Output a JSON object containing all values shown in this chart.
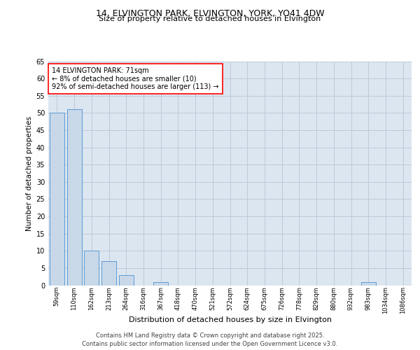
{
  "title": "14, ELVINGTON PARK, ELVINGTON, YORK, YO41 4DW",
  "subtitle": "Size of property relative to detached houses in Elvington",
  "xlabel": "Distribution of detached houses by size in Elvington",
  "ylabel": "Number of detached properties",
  "categories": [
    "59sqm",
    "110sqm",
    "162sqm",
    "213sqm",
    "264sqm",
    "316sqm",
    "367sqm",
    "418sqm",
    "470sqm",
    "521sqm",
    "572sqm",
    "624sqm",
    "675sqm",
    "726sqm",
    "778sqm",
    "829sqm",
    "880sqm",
    "932sqm",
    "983sqm",
    "1034sqm",
    "1086sqm"
  ],
  "values": [
    50,
    51,
    10,
    7,
    3,
    0,
    1,
    0,
    0,
    0,
    0,
    0,
    0,
    0,
    0,
    0,
    0,
    0,
    1,
    0,
    0
  ],
  "bar_color": "#c8d8e8",
  "bar_edgecolor": "#5b9bd5",
  "grid_color": "#c0c8d8",
  "background_color": "#dce6f0",
  "annotation_box_text": "14 ELVINGTON PARK: 71sqm\n← 8% of detached houses are smaller (10)\n92% of semi-detached houses are larger (113) →",
  "annotation_box_edgecolor": "red",
  "footer": "Contains HM Land Registry data © Crown copyright and database right 2025.\nContains public sector information licensed under the Open Government Licence v3.0.",
  "ylim": [
    0,
    65
  ],
  "yticks": [
    0,
    5,
    10,
    15,
    20,
    25,
    30,
    35,
    40,
    45,
    50,
    55,
    60,
    65
  ],
  "title_fontsize": 9,
  "subtitle_fontsize": 8,
  "ylabel_fontsize": 7.5,
  "xlabel_fontsize": 8,
  "ytick_fontsize": 7,
  "xtick_fontsize": 6,
  "annot_fontsize": 7,
  "footer_fontsize": 6
}
